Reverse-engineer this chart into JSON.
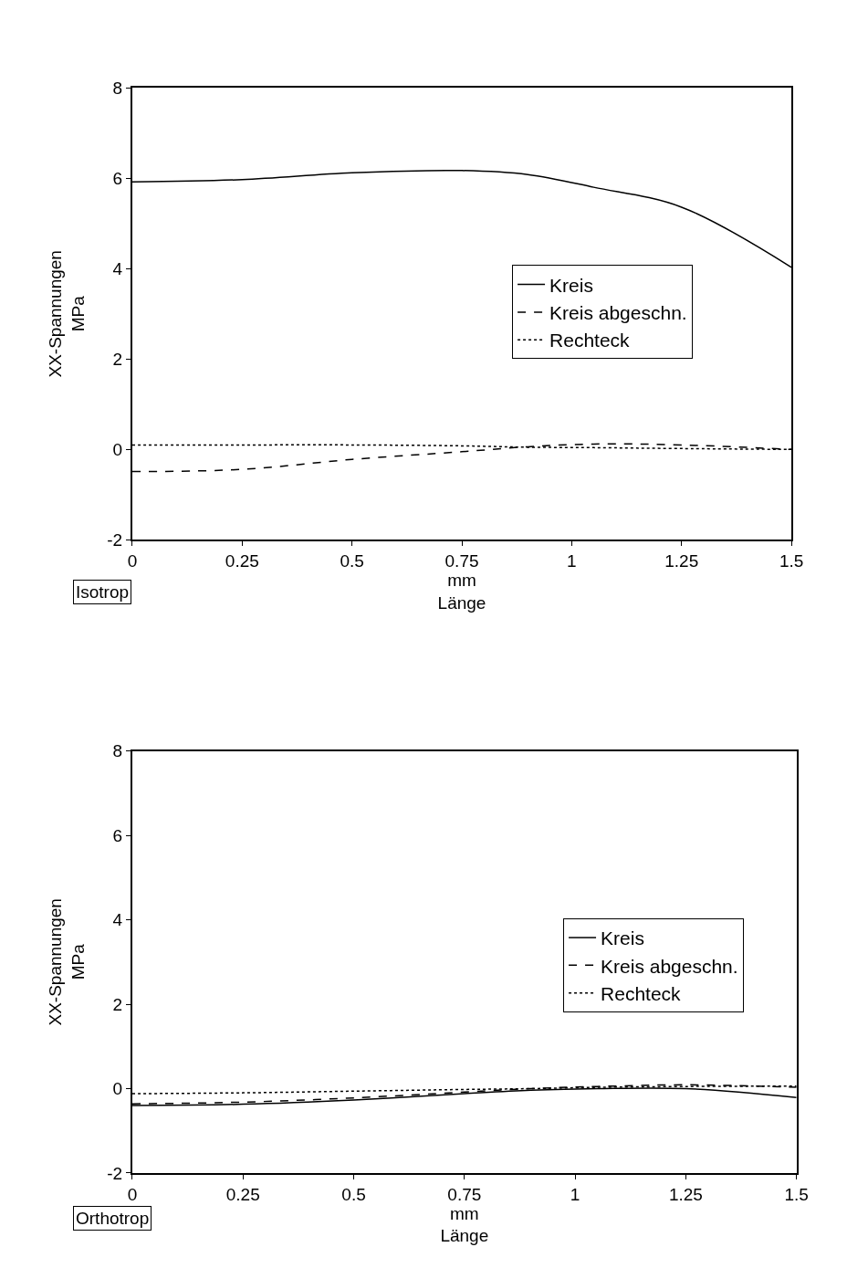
{
  "chart_data": [
    {
      "type": "line",
      "xlabel": "mm\nLänge",
      "ylabel": "XX-Spannungen\nMPa",
      "annotations": [
        "Isotrop"
      ],
      "legend": "right",
      "x": [
        0,
        0.25,
        0.5,
        0.75,
        0.9,
        1.05,
        1.25,
        1.5
      ],
      "xlim": [
        0,
        1.5
      ],
      "xticks": [
        0,
        0.25,
        0.5,
        0.75,
        1,
        1.25,
        1.5
      ],
      "ylim": [
        -2,
        8
      ],
      "yticks": [
        -2,
        0,
        2,
        4,
        6,
        8
      ],
      "series": [
        {
          "name": "Kreis",
          "color": "#000000",
          "line_style": "solid",
          "values": [
            5.92,
            5.97,
            6.12,
            6.17,
            6.08,
            5.8,
            5.36,
            4.03
          ]
        },
        {
          "name": "Kreis abgeschn.",
          "color": "#000000",
          "line_style": "dashed",
          "values": [
            -0.49,
            -0.44,
            -0.22,
            -0.05,
            0.06,
            0.12,
            0.1,
            0.0
          ]
        },
        {
          "name": "Rechteck",
          "color": "#000000",
          "line_style": "dotted",
          "values": [
            0.1,
            0.1,
            0.1,
            0.08,
            0.05,
            0.04,
            0.02,
            0.0
          ]
        }
      ]
    },
    {
      "type": "line",
      "xlabel": "mm\nLänge",
      "ylabel": "XX-Spannungen\nMPa",
      "annotations": [
        "Orthotrop"
      ],
      "legend": "right",
      "x": [
        0,
        0.25,
        0.5,
        0.75,
        0.9,
        1.05,
        1.25,
        1.5
      ],
      "xlim": [
        0,
        1.5
      ],
      "xticks": [
        0,
        0.25,
        0.5,
        0.75,
        1,
        1.25,
        1.5
      ],
      "ylim": [
        -2,
        8
      ],
      "yticks": [
        -2,
        0,
        2,
        4,
        6,
        8
      ],
      "series": [
        {
          "name": "Kreis",
          "color": "#000000",
          "line_style": "solid",
          "values": [
            -0.4,
            -0.37,
            -0.27,
            -0.12,
            -0.04,
            0.0,
            0.0,
            -0.21
          ]
        },
        {
          "name": "Kreis abgeschn.",
          "color": "#000000",
          "line_style": "dashed",
          "values": [
            -0.36,
            -0.32,
            -0.22,
            -0.08,
            0.0,
            0.05,
            0.09,
            0.03
          ]
        },
        {
          "name": "Rechteck",
          "color": "#000000",
          "line_style": "dotted",
          "values": [
            -0.12,
            -0.1,
            -0.06,
            -0.02,
            0.0,
            0.03,
            0.05,
            0.06
          ]
        }
      ]
    }
  ]
}
